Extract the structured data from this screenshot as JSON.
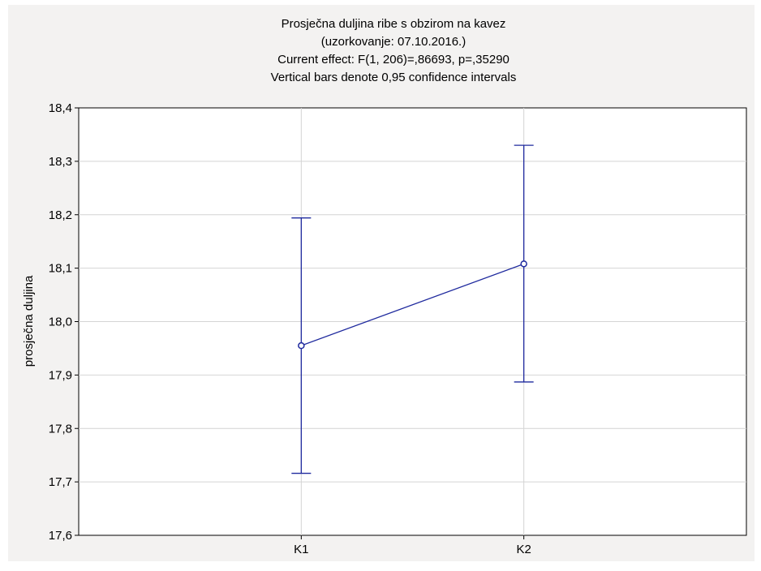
{
  "chart_data": {
    "type": "line",
    "title": [
      "Prosječna duljina ribe s obzirom na kavez",
      "(uzorkovanje: 07.10.2016.)",
      "Current effect: F(1, 206)=,86693, p=,35290",
      "Vertical bars denote 0,95 confidence intervals"
    ],
    "xlabel": "",
    "ylabel": "prosječna duljina",
    "categories": [
      "K1",
      "K2"
    ],
    "series": [
      {
        "values": [
          17.955,
          18.108
        ],
        "ci_lower": [
          17.716,
          17.887
        ],
        "ci_upper": [
          18.194,
          18.33
        ]
      }
    ],
    "ylim": [
      17.6,
      18.4
    ],
    "yticks": [
      "17,6",
      "17,7",
      "17,8",
      "17,9",
      "18,0",
      "18,1",
      "18,2",
      "18,3",
      "18,4"
    ],
    "grid": true,
    "legend": "none",
    "colors": {
      "series": "#1f2a9e",
      "grid": "#d4d4d4",
      "background": "#f3f2f1",
      "plot_background": "#ffffff"
    }
  }
}
